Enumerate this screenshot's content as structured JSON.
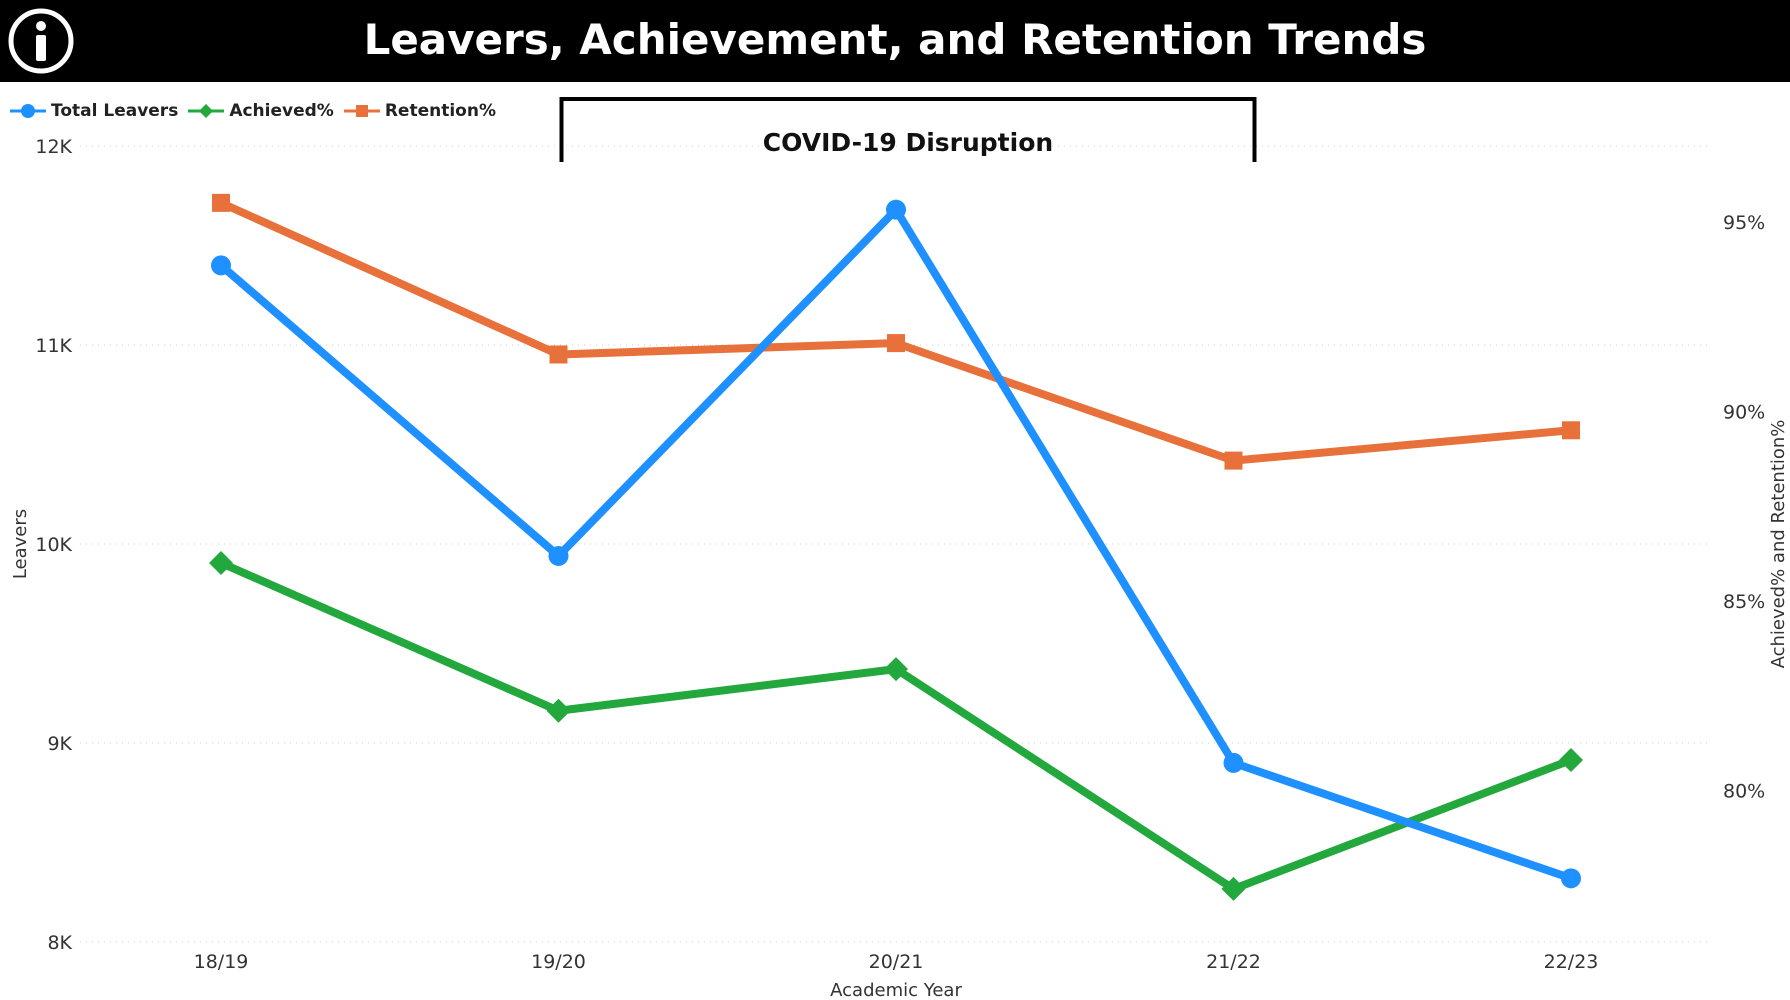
{
  "header": {
    "title": "Leavers, Achievement, and Retention Trends",
    "info_icon": "info-circle-icon"
  },
  "colors": {
    "total_leavers": "#1E90FF",
    "achieved": "#22A83C",
    "retention": "#E8703A",
    "header_bg": "#000000"
  },
  "legend": {
    "position": "top-left",
    "items": [
      {
        "label": "Total Leavers",
        "marker": "circle"
      },
      {
        "label": "Achieved%",
        "marker": "diamond"
      },
      {
        "label": "Retention%",
        "marker": "square"
      }
    ]
  },
  "chart_data": {
    "type": "line",
    "title": "Leavers, Achievement, and Retention Trends",
    "xlabel": "Academic Year",
    "ylabel": "Leavers",
    "y2label": "Achieved% and Retention%",
    "categories": [
      "18/19",
      "19/20",
      "20/21",
      "21/22",
      "22/23"
    ],
    "ylim": [
      8000,
      12000
    ],
    "y_ticks": [
      8000,
      9000,
      10000,
      11000,
      12000
    ],
    "y_tick_labels": [
      "8K",
      "9K",
      "10K",
      "11K",
      "12K"
    ],
    "y2lim": [
      76.0,
      97.0
    ],
    "y2_ticks": [
      80,
      85,
      90,
      95
    ],
    "y2_tick_labels": [
      "80%",
      "85%",
      "90%",
      "95%"
    ],
    "grid": true,
    "series": [
      {
        "name": "Total Leavers",
        "axis": "left",
        "values": [
          11400,
          9940,
          11680,
          8900,
          8320
        ]
      },
      {
        "name": "Achieved%",
        "axis": "right",
        "values": [
          86.0,
          82.1,
          83.2,
          77.4,
          80.8
        ]
      },
      {
        "name": "Retention%",
        "axis": "right",
        "values": [
          95.5,
          91.5,
          91.8,
          88.7,
          89.5
        ]
      }
    ],
    "annotation": {
      "label": "COVID-19 Disruption",
      "from_category": "19/20",
      "to_category": "21/22"
    }
  }
}
